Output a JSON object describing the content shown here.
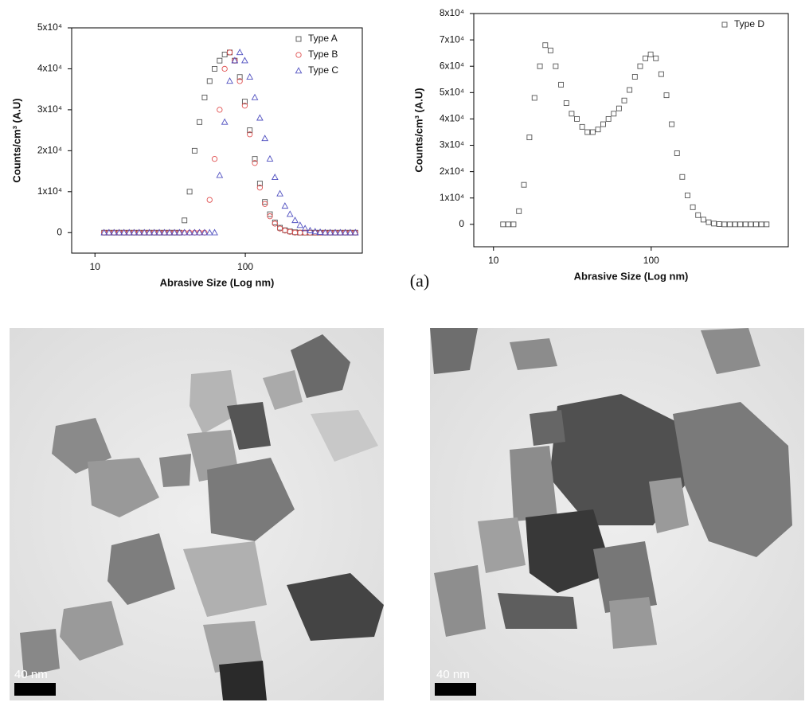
{
  "chart_data": [
    {
      "type": "scatter",
      "xlabel": "Abrasive Size (Log nm)",
      "ylabel": "Counts/cm³ (A.U)",
      "log_x": true,
      "legend": "upper right",
      "xlim": [
        7,
        600
      ],
      "xticks": [
        10,
        100
      ],
      "ylim": [
        -5000,
        50000
      ],
      "yticks": [
        0,
        {
          "value": 10000,
          "label": "1x10⁴"
        },
        {
          "value": 20000,
          "label": "2x10⁴"
        },
        {
          "value": 30000,
          "label": "3x10⁴"
        },
        {
          "value": 40000,
          "label": "4x10⁴"
        },
        {
          "value": 50000,
          "label": "5x10⁴"
        }
      ],
      "x": [
        11.5,
        12.4,
        13.4,
        14.5,
        15.6,
        16.9,
        18.2,
        19.7,
        21.3,
        23.0,
        24.8,
        26.8,
        29.0,
        31.3,
        33.8,
        36.5,
        39.4,
        42.6,
        46.0,
        49.6,
        53.6,
        57.9,
        62.5,
        67.5,
        72.9,
        78.8,
        85.1,
        91.9,
        99.2,
        107.1,
        115.7,
        125.0,
        135.0,
        145.8,
        157.4,
        170.0,
        183.6,
        198.3,
        214.2,
        231.3,
        249.8,
        269.8,
        291.4,
        314.7,
        339.9,
        367.1,
        396.5,
        428.2,
        462.4,
        499.4,
        539.4
      ],
      "series": [
        {
          "name": "Type A",
          "color": "#555555",
          "marker": "square",
          "values": [
            0,
            0,
            0,
            0,
            0,
            0,
            0,
            0,
            0,
            0,
            0,
            0,
            0,
            0,
            0,
            0,
            3000,
            10000,
            20000,
            27000,
            33000,
            37000,
            40000,
            42000,
            43500,
            44000,
            42000,
            38000,
            32000,
            25000,
            18000,
            12000,
            7500,
            4500,
            2500,
            1200,
            600,
            300,
            100,
            0,
            0,
            0,
            0,
            0,
            0,
            0,
            0,
            0,
            0,
            0,
            0
          ]
        },
        {
          "name": "Type B",
          "color": "#e05050",
          "marker": "circle",
          "values": [
            0,
            0,
            0,
            0,
            0,
            0,
            0,
            0,
            0,
            0,
            0,
            0,
            0,
            0,
            0,
            0,
            0,
            0,
            0,
            0,
            0,
            8000,
            18000,
            30000,
            40000,
            44000,
            42000,
            37000,
            31000,
            24000,
            17000,
            11000,
            7000,
            4000,
            2200,
            1000,
            500,
            200,
            0,
            0,
            0,
            0,
            0,
            0,
            0,
            0,
            0,
            0,
            0,
            0,
            0
          ]
        },
        {
          "name": "Type C",
          "color": "#5050c0",
          "marker": "triangle",
          "values": [
            0,
            0,
            0,
            0,
            0,
            0,
            0,
            0,
            0,
            0,
            0,
            0,
            0,
            0,
            0,
            0,
            0,
            0,
            0,
            0,
            0,
            0,
            0,
            14000,
            27000,
            37000,
            42000,
            44000,
            42000,
            38000,
            33000,
            28000,
            23000,
            18000,
            13500,
            9500,
            6500,
            4500,
            3000,
            1800,
            1000,
            500,
            250,
            100,
            0,
            0,
            0,
            0,
            0,
            0,
            0
          ]
        }
      ]
    },
    {
      "type": "scatter",
      "xlabel": "Abrasive Size (Log nm)",
      "ylabel": "Counts/cm³ (A.U)",
      "log_x": true,
      "legend": "upper right",
      "xlim": [
        7.5,
        740
      ],
      "xticks": [
        10,
        100
      ],
      "ylim": [
        -8500,
        80000
      ],
      "yticks": [
        0,
        {
          "value": 10000,
          "label": "1x10⁴"
        },
        {
          "value": 20000,
          "label": "2x10⁴"
        },
        {
          "value": 30000,
          "label": "3x10⁴"
        },
        {
          "value": 40000,
          "label": "4x10⁴"
        },
        {
          "value": 50000,
          "label": "5x10⁴"
        },
        {
          "value": 60000,
          "label": "6x10⁴"
        },
        {
          "value": 70000,
          "label": "7x10⁴"
        },
        {
          "value": 80000,
          "label": "8x10⁴"
        }
      ],
      "x": [
        11.5,
        12.4,
        13.4,
        14.5,
        15.6,
        16.9,
        18.2,
        19.7,
        21.3,
        23.0,
        24.8,
        26.8,
        29.0,
        31.3,
        33.8,
        36.5,
        39.4,
        42.6,
        46.0,
        49.6,
        53.6,
        57.9,
        62.5,
        67.5,
        72.9,
        78.8,
        85.1,
        91.9,
        99.2,
        107.1,
        115.7,
        125.0,
        135.0,
        145.8,
        157.4,
        170.0,
        183.6,
        198.3,
        214.2,
        231.3,
        249.8,
        269.8,
        291.4,
        314.7,
        339.9,
        367.1,
        396.5,
        428.2,
        462.4,
        499.4,
        539.4
      ],
      "series": [
        {
          "name": "Type D",
          "color": "#555555",
          "marker": "square",
          "values": [
            0,
            0,
            0,
            5000,
            15000,
            33000,
            48000,
            60000,
            68000,
            66000,
            60000,
            53000,
            46000,
            42000,
            40000,
            37000,
            35000,
            35000,
            36000,
            38000,
            40000,
            42000,
            44000,
            47000,
            51000,
            56000,
            60000,
            63000,
            64500,
            63000,
            57000,
            49000,
            38000,
            27000,
            18000,
            11000,
            6500,
            3500,
            1800,
            800,
            300,
            100,
            0,
            0,
            0,
            0,
            0,
            0,
            0,
            0,
            0
          ]
        }
      ]
    }
  ],
  "figure_label": "(a)",
  "images": [
    {
      "scale_bar": "40 nm"
    },
    {
      "scale_bar": "40 nm"
    }
  ]
}
